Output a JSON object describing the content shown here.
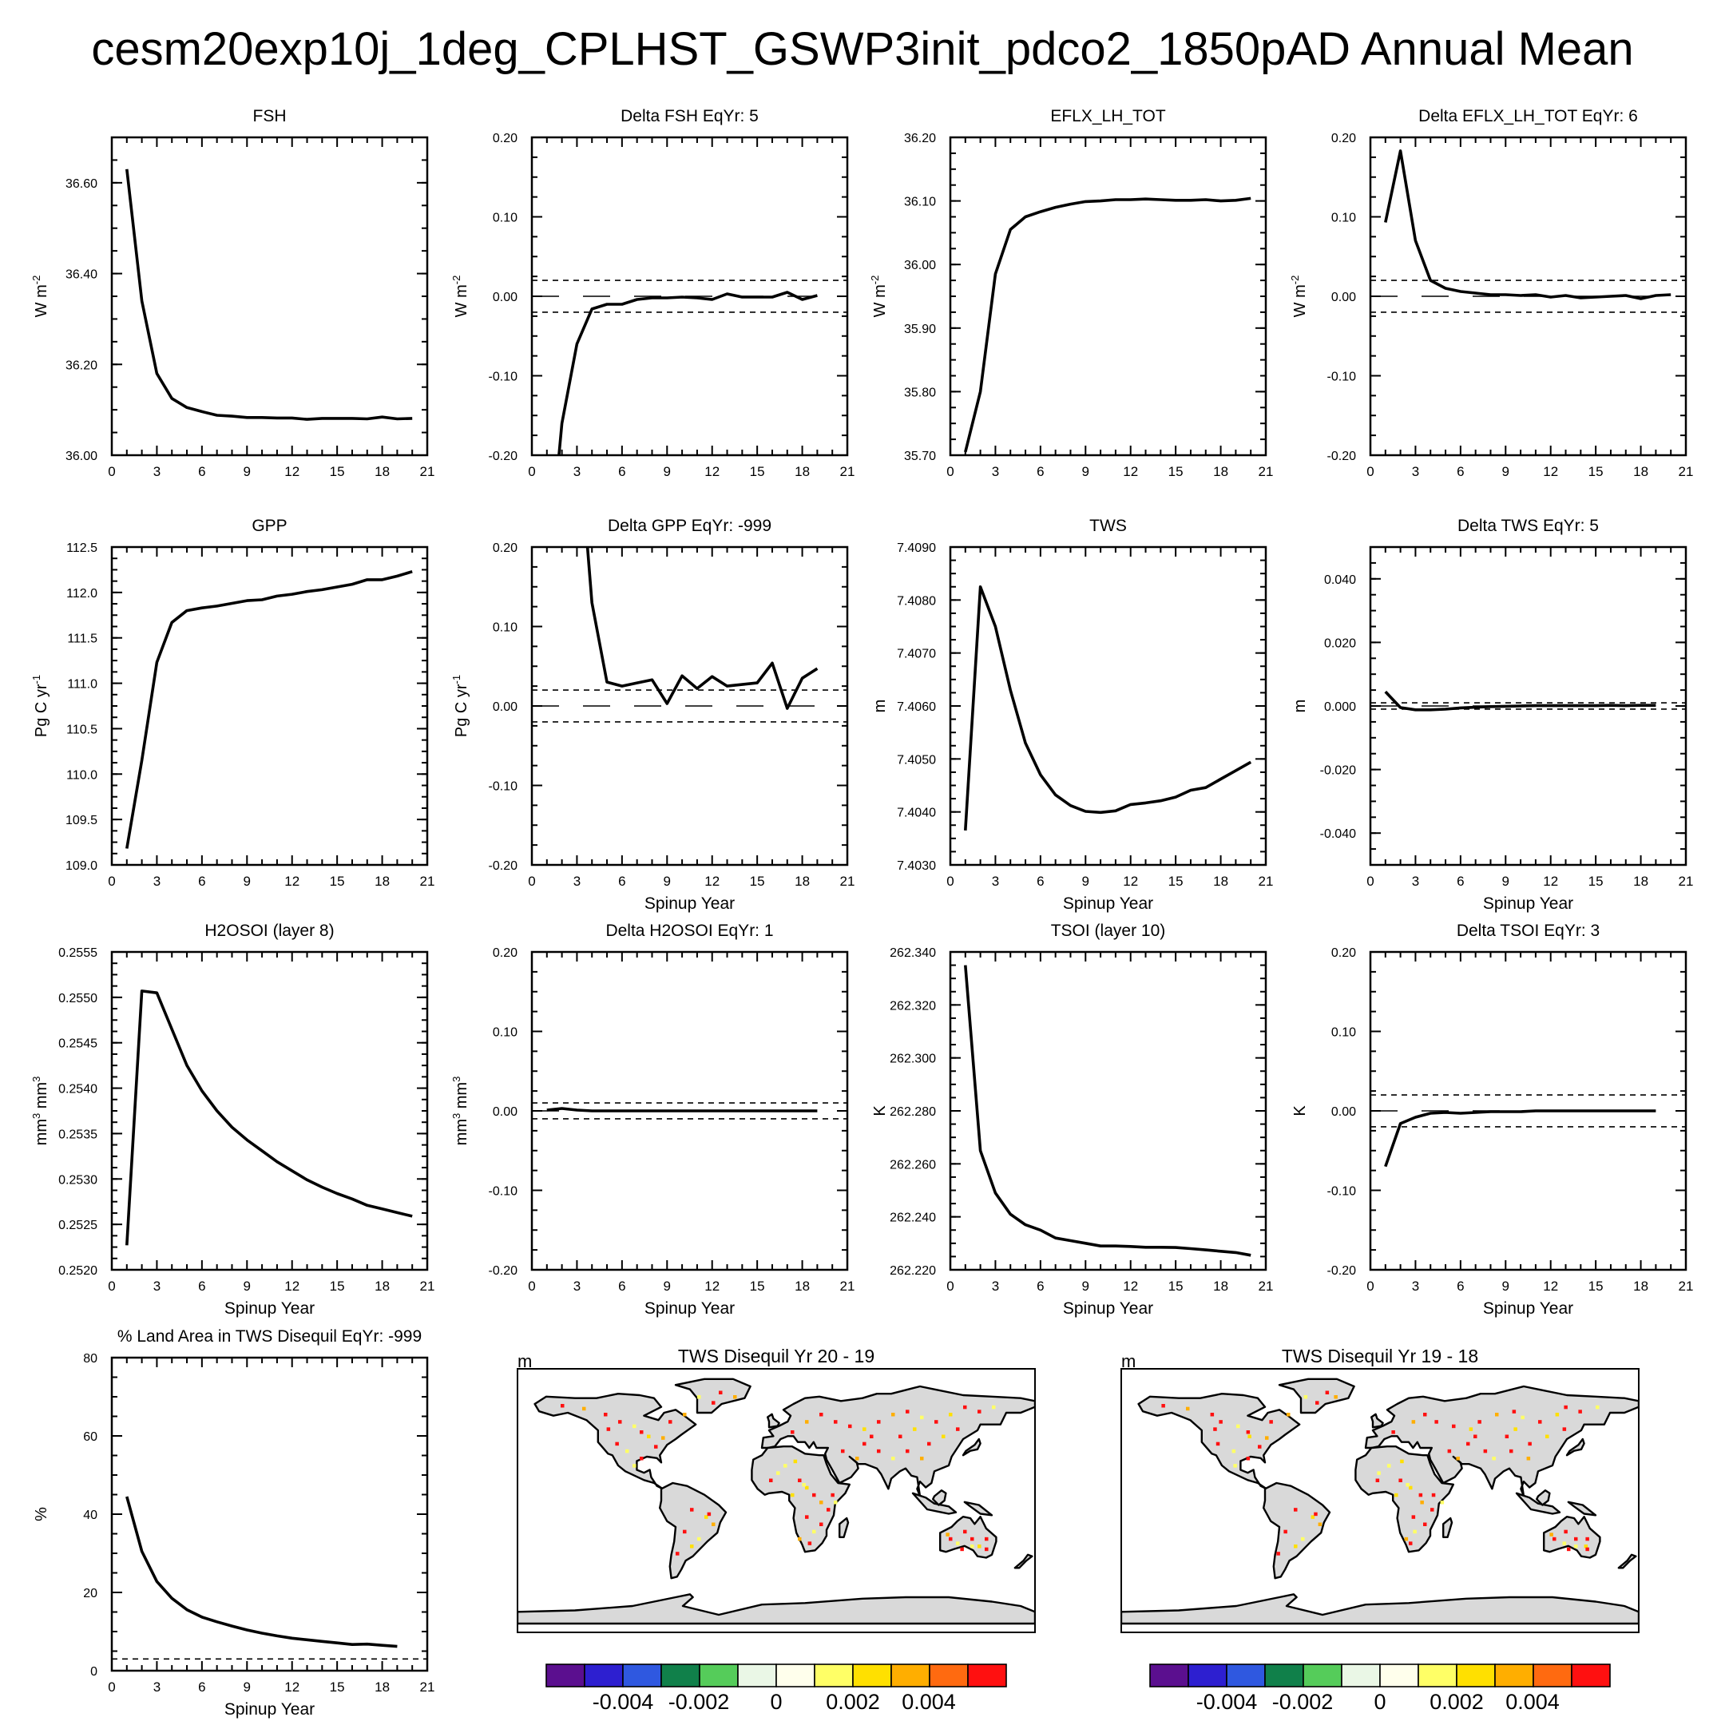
{
  "page_title": "cesm20exp10j_1deg_CPLHST_GSWP3init_pdco2_1850pAD Annual Mean",
  "chart_data": [
    {
      "type": "line",
      "title": "FSH",
      "ylabel": "W m",
      "ylabel_sup": "-2",
      "xlabel": "",
      "xlim": [
        0,
        21
      ],
      "ylim": [
        36.0,
        36.7
      ],
      "yticks": [
        36.0,
        36.2,
        36.4,
        36.6
      ],
      "ytick_labels": [
        "36.00",
        "36.20",
        "36.40",
        "36.60"
      ],
      "x": [
        1,
        2,
        3,
        4,
        5,
        6,
        7,
        8,
        9,
        10,
        11,
        12,
        13,
        14,
        15,
        16,
        17,
        18,
        19,
        20
      ],
      "values": [
        36.63,
        36.34,
        36.18,
        36.125,
        36.105,
        36.096,
        36.088,
        36.086,
        36.083,
        36.083,
        36.082,
        36.082,
        36.079,
        36.081,
        36.081,
        36.081,
        36.08,
        36.084,
        36.08,
        36.081
      ],
      "refs": []
    },
    {
      "type": "line",
      "title": "Delta FSH EqYr: 5",
      "ylabel": "W m",
      "ylabel_sup": "-2",
      "xlabel": "",
      "xlim": [
        0,
        21
      ],
      "ylim": [
        -0.2,
        0.2
      ],
      "yticks": [
        -0.2,
        -0.1,
        0,
        0.1,
        0.2
      ],
      "ytick_labels": [
        "-0.20",
        "-0.10",
        "0.00",
        "0.10",
        "0.20"
      ],
      "x": [
        1.8,
        2,
        3,
        4,
        5,
        6,
        7,
        8,
        9,
        10,
        11,
        12,
        13,
        14,
        15,
        16,
        17,
        18,
        19
      ],
      "values": [
        -0.2,
        -0.16,
        -0.06,
        -0.016,
        -0.01,
        -0.01,
        -0.004,
        -0.002,
        -0.002,
        -0.001,
        -0.002,
        -0.004,
        0.003,
        -0.001,
        -0.001,
        -0.001,
        0.005,
        -0.004,
        0.001
      ],
      "refs": [
        {
          "y": 0.02,
          "style": "dash"
        },
        {
          "y": -0.02,
          "style": "dash"
        },
        {
          "y": 0,
          "style": "longdash"
        }
      ]
    },
    {
      "type": "line",
      "title": "EFLX_LH_TOT",
      "ylabel": "W m",
      "ylabel_sup": "-2",
      "xlabel": "",
      "xlim": [
        0,
        21
      ],
      "ylim": [
        35.7,
        36.2
      ],
      "yticks": [
        35.7,
        35.8,
        35.9,
        36.0,
        36.1,
        36.2
      ],
      "ytick_labels": [
        "35.70",
        "35.80",
        "35.90",
        "36.00",
        "36.10",
        "36.20"
      ],
      "x": [
        1,
        2,
        3,
        4,
        5,
        6,
        7,
        8,
        9,
        10,
        11,
        12,
        13,
        14,
        15,
        16,
        17,
        18,
        19,
        20
      ],
      "values": [
        35.705,
        35.8,
        35.985,
        36.055,
        36.075,
        36.083,
        36.09,
        36.095,
        36.099,
        36.1,
        36.102,
        36.102,
        36.103,
        36.102,
        36.101,
        36.101,
        36.102,
        36.1,
        36.101,
        36.104
      ],
      "refs": []
    },
    {
      "type": "line",
      "title": "Delta EFLX_LH_TOT EqYr: 6",
      "ylabel": "W m",
      "ylabel_sup": "-2",
      "xlabel": "",
      "xlim": [
        0,
        21
      ],
      "ylim": [
        -0.2,
        0.2
      ],
      "yticks": [
        -0.2,
        -0.1,
        0,
        0.1,
        0.2
      ],
      "ytick_labels": [
        "-0.20",
        "-0.10",
        "0.00",
        "0.10",
        "0.20"
      ],
      "x": [
        1,
        2,
        3,
        4,
        5,
        6,
        7,
        8,
        9,
        10,
        11,
        12,
        13,
        14,
        15,
        16,
        17,
        18,
        19,
        20
      ],
      "values": [
        0.093,
        0.183,
        0.07,
        0.02,
        0.01,
        0.006,
        0.004,
        0.002,
        0.002,
        0.001,
        0.002,
        -0.001,
        0.001,
        -0.002,
        -0.001,
        0,
        0.001,
        -0.003,
        0.001,
        0.002
      ],
      "refs": [
        {
          "y": 0.02,
          "style": "dash"
        },
        {
          "y": -0.02,
          "style": "dash"
        },
        {
          "y": 0,
          "style": "longdash"
        }
      ]
    },
    {
      "type": "line",
      "title": "GPP",
      "ylabel": "Pg C yr",
      "ylabel_sup": "-1",
      "xlabel": "",
      "xlim": [
        0,
        21
      ],
      "ylim": [
        109.0,
        112.5
      ],
      "yticks": [
        109.0,
        109.5,
        110.0,
        110.5,
        111.0,
        111.5,
        112.0,
        112.5
      ],
      "ytick_labels": [
        "109.0",
        "109.5",
        "110.0",
        "110.5",
        "111.0",
        "111.5",
        "112.0",
        "112.5"
      ],
      "x": [
        1,
        2,
        3,
        4,
        5,
        6,
        7,
        8,
        9,
        10,
        11,
        12,
        13,
        14,
        15,
        16,
        17,
        18,
        19,
        20
      ],
      "values": [
        109.18,
        110.15,
        111.23,
        111.67,
        111.8,
        111.83,
        111.85,
        111.88,
        111.91,
        111.92,
        111.96,
        111.98,
        112.01,
        112.03,
        112.06,
        112.09,
        112.14,
        112.14,
        112.18,
        112.23
      ],
      "refs": []
    },
    {
      "type": "line",
      "title": "Delta GPP EqYr: -999",
      "ylabel": "Pg C yr",
      "ylabel_sup": "-1",
      "xlabel": "Spinup Year",
      "xlim": [
        0,
        21
      ],
      "ylim": [
        -0.2,
        0.2
      ],
      "yticks": [
        -0.2,
        -0.1,
        0,
        0.1,
        0.2
      ],
      "ytick_labels": [
        "-0.20",
        "-0.10",
        "0.00",
        "0.10",
        "0.20"
      ],
      "x": [
        3.7,
        4,
        5,
        6,
        7,
        8,
        9,
        10,
        11,
        12,
        13,
        14,
        15,
        16,
        17,
        18,
        19
      ],
      "values": [
        0.2,
        0.13,
        0.03,
        0.025,
        0.029,
        0.033,
        0.003,
        0.038,
        0.022,
        0.037,
        0.025,
        0.027,
        0.029,
        0.054,
        -0.003,
        0.035,
        0.047
      ],
      "refs": [
        {
          "y": 0.02,
          "style": "dash"
        },
        {
          "y": -0.02,
          "style": "dash"
        },
        {
          "y": 0,
          "style": "longdash"
        }
      ]
    },
    {
      "type": "line",
      "title": "TWS",
      "ylabel": "m",
      "ylabel_sup": "",
      "xlabel": "Spinup Year",
      "xlim": [
        0,
        21
      ],
      "ylim": [
        7.403,
        7.409
      ],
      "yticks": [
        7.403,
        7.404,
        7.405,
        7.406,
        7.407,
        7.408,
        7.409
      ],
      "ytick_labels": [
        "7.4030",
        "7.4040",
        "7.4050",
        "7.4060",
        "7.4070",
        "7.4080",
        "7.4090"
      ],
      "x": [
        1,
        2,
        3,
        4,
        5,
        6,
        7,
        8,
        9,
        10,
        11,
        12,
        13,
        14,
        15,
        16,
        17,
        18,
        19,
        20
      ],
      "values": [
        7.40365,
        7.40825,
        7.4075,
        7.4063,
        7.4053,
        7.4047,
        7.40432,
        7.40412,
        7.40401,
        7.40399,
        7.40402,
        7.40414,
        7.40417,
        7.40421,
        7.40428,
        7.40441,
        7.40446,
        7.40462,
        7.40478,
        7.40494
      ],
      "refs": []
    },
    {
      "type": "line",
      "title": "Delta TWS EqYr: 5",
      "ylabel": "m",
      "ylabel_sup": "",
      "xlabel": "Spinup Year",
      "xlim": [
        0,
        21
      ],
      "ylim": [
        -0.05,
        0.05
      ],
      "yticks": [
        -0.04,
        -0.02,
        0,
        0.02,
        0.04
      ],
      "ytick_labels": [
        "-0.040",
        "-0.020",
        "0.000",
        "0.020",
        "0.040"
      ],
      "x": [
        1,
        2,
        3,
        4,
        5,
        6,
        7,
        8,
        9,
        10,
        11,
        12,
        13,
        14,
        15,
        16,
        17,
        18,
        19
      ],
      "values": [
        0.0045,
        -0.0005,
        -0.0012,
        -0.0012,
        -0.001,
        -0.0006,
        -0.0004,
        -0.0002,
        -0.0001,
        0,
        0.0001,
        0.0001,
        0.0001,
        0.0001,
        0.0001,
        0.0002,
        0.0001,
        0.0002,
        0.0002
      ],
      "refs": [
        {
          "y": 0.001,
          "style": "dash"
        },
        {
          "y": -0.001,
          "style": "dash"
        },
        {
          "y": 0,
          "style": "longdash"
        }
      ]
    },
    {
      "type": "line",
      "title": "H2OSOI (layer 8)",
      "ylabel": "mm",
      "ylabel_sup": "3",
      "ylabel2": " mm",
      "ylabel_sup2": "3",
      "xlabel": "Spinup Year",
      "xlim": [
        0,
        21
      ],
      "ylim": [
        0.252,
        0.2555
      ],
      "yticks": [
        0.252,
        0.2525,
        0.253,
        0.2535,
        0.254,
        0.2545,
        0.255,
        0.2555
      ],
      "ytick_labels": [
        "0.2520",
        "0.2525",
        "0.2530",
        "0.2535",
        "0.2540",
        "0.2545",
        "0.2550",
        "0.2555"
      ],
      "x": [
        1,
        2,
        3,
        4,
        5,
        6,
        7,
        8,
        9,
        10,
        11,
        12,
        13,
        14,
        15,
        16,
        17,
        18,
        19,
        20
      ],
      "values": [
        0.25227,
        0.25507,
        0.25505,
        0.25465,
        0.25425,
        0.25397,
        0.25375,
        0.25357,
        0.25343,
        0.25331,
        0.25319,
        0.25309,
        0.25299,
        0.25291,
        0.25284,
        0.25278,
        0.25271,
        0.25267,
        0.25263,
        0.25259
      ],
      "refs": []
    },
    {
      "type": "line",
      "title": "Delta H2OSOI EqYr: 1",
      "ylabel": "mm",
      "ylabel_sup": "3",
      "ylabel2": " mm",
      "ylabel_sup2": "3",
      "xlabel": "Spinup Year",
      "xlim": [
        0,
        21
      ],
      "ylim": [
        -0.2,
        0.2
      ],
      "yticks": [
        -0.2,
        -0.1,
        0,
        0.1,
        0.2
      ],
      "ytick_labels": [
        "-0.20",
        "-0.10",
        "0.00",
        "0.10",
        "0.20"
      ],
      "x": [
        1,
        2,
        3,
        4,
        5,
        6,
        7,
        8,
        9,
        10,
        11,
        12,
        13,
        14,
        15,
        16,
        17,
        18,
        19
      ],
      "values": [
        0.001,
        0.003,
        0.001,
        0,
        0,
        0,
        0,
        0,
        0,
        0,
        0,
        0,
        0,
        0,
        0,
        0,
        0,
        0,
        0
      ],
      "refs": [
        {
          "y": 0.01,
          "style": "dash"
        },
        {
          "y": -0.01,
          "style": "dash"
        },
        {
          "y": 0,
          "style": "longdash"
        }
      ]
    },
    {
      "type": "line",
      "title": "TSOI (layer 10)",
      "ylabel": "K",
      "ylabel_sup": "",
      "xlabel": "Spinup Year",
      "xlim": [
        0,
        21
      ],
      "ylim": [
        262.22,
        262.34
      ],
      "yticks": [
        262.22,
        262.24,
        262.26,
        262.28,
        262.3,
        262.32,
        262.34
      ],
      "ytick_labels": [
        "262.220",
        "262.240",
        "262.260",
        "262.280",
        "262.300",
        "262.320",
        "262.340"
      ],
      "x": [
        1,
        2,
        3,
        4,
        5,
        6,
        7,
        8,
        9,
        10,
        11,
        12,
        13,
        14,
        15,
        16,
        17,
        18,
        19,
        20
      ],
      "values": [
        262.335,
        262.265,
        262.249,
        262.241,
        262.237,
        262.235,
        262.232,
        262.231,
        262.23,
        262.229,
        262.229,
        262.2288,
        262.2285,
        262.2285,
        262.2284,
        262.228,
        262.2275,
        262.227,
        262.2265,
        262.2255
      ],
      "refs": []
    },
    {
      "type": "line",
      "title": "Delta TSOI EqYr: 3",
      "ylabel": "K",
      "ylabel_sup": "",
      "xlabel": "Spinup Year",
      "xlim": [
        0,
        21
      ],
      "ylim": [
        -0.2,
        0.2
      ],
      "yticks": [
        -0.2,
        -0.1,
        0,
        0.1,
        0.2
      ],
      "ytick_labels": [
        "-0.20",
        "-0.10",
        "0.00",
        "0.10",
        "0.20"
      ],
      "x": [
        1,
        2,
        3,
        4,
        5,
        6,
        7,
        8,
        9,
        10,
        11,
        12,
        13,
        14,
        15,
        16,
        17,
        18,
        19
      ],
      "values": [
        -0.07,
        -0.016,
        -0.008,
        -0.003,
        -0.002,
        -0.003,
        -0.002,
        -0.001,
        -0.001,
        -0.001,
        0,
        0,
        0,
        0,
        0,
        0,
        0,
        0,
        0
      ],
      "refs": [
        {
          "y": 0.02,
          "style": "dash"
        },
        {
          "y": -0.02,
          "style": "dash"
        },
        {
          "y": 0,
          "style": "longdash"
        }
      ]
    },
    {
      "type": "line",
      "title": "% Land Area in TWS Disequil EqYr: -999",
      "ylabel": "%",
      "ylabel_sup": "",
      "xlabel": "Spinup Year",
      "xlim": [
        0,
        21
      ],
      "ylim": [
        0,
        80
      ],
      "yticks": [
        0,
        20,
        40,
        60,
        80
      ],
      "ytick_labels": [
        "0",
        "20",
        "40",
        "60",
        "80"
      ],
      "x": [
        1,
        2,
        3,
        4,
        5,
        6,
        7,
        8,
        9,
        10,
        11,
        12,
        13,
        14,
        15,
        16,
        17,
        18,
        19
      ],
      "values": [
        44.5,
        30.5,
        22.8,
        18.5,
        15.6,
        13.7,
        12.5,
        11.4,
        10.4,
        9.6,
        8.9,
        8.3,
        7.9,
        7.5,
        7.1,
        6.7,
        6.8,
        6.5,
        6.2
      ],
      "refs": [
        {
          "y": 3,
          "style": "dash"
        }
      ]
    }
  ],
  "xticks": [
    0,
    3,
    6,
    9,
    12,
    15,
    18,
    21
  ],
  "xtick_labels": [
    "0",
    "3",
    "6",
    "9",
    "12",
    "15",
    "18",
    "21"
  ],
  "maps": [
    {
      "title": "TWS Disequil Yr 20 - 19",
      "units": "m"
    },
    {
      "title": "TWS Disequil Yr 19 - 18",
      "units": "m"
    }
  ],
  "colorbar": {
    "colors": [
      "#5b0f8f",
      "#2d1fd0",
      "#2f58e0",
      "#10804a",
      "#55cc5a",
      "#eaf7e6",
      "#ffffec",
      "#ffff66",
      "#ffe000",
      "#ffae00",
      "#ff6a10",
      "#ff1010"
    ],
    "labels": [
      "-0.004",
      "-0.002",
      "0",
      "0.002",
      "0.004"
    ]
  },
  "land_color": "#d9d9d9",
  "line_color": "#000000"
}
